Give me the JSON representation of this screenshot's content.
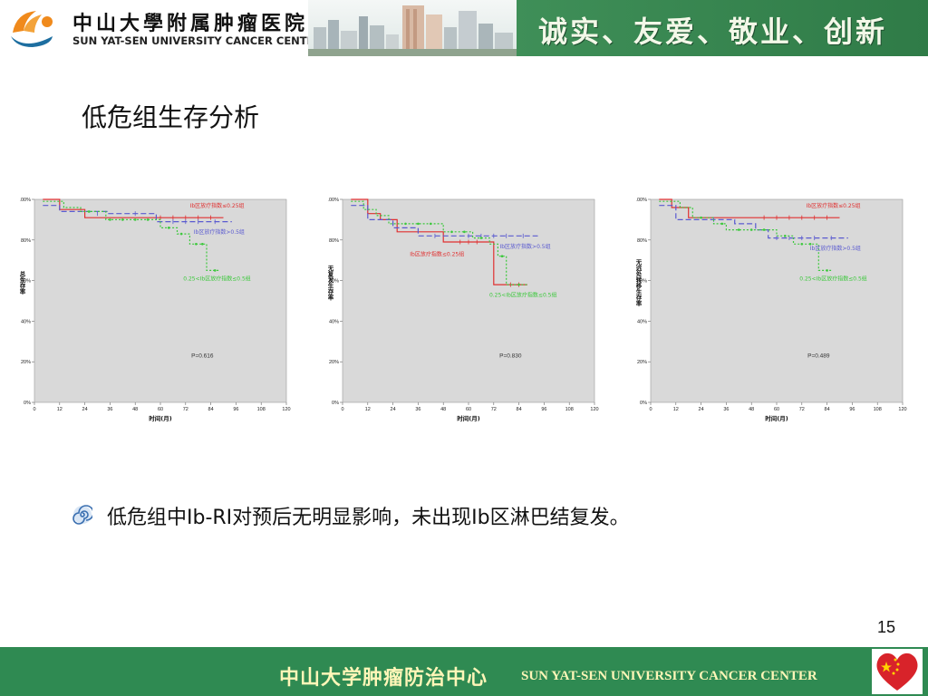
{
  "header": {
    "logo_cn": "中山大學附属肿瘤医院",
    "logo_en": "SUN YAT-SEN UNIVERSITY CANCER CENTER",
    "motto": "诚实、友爱、敬业、创新"
  },
  "slide": {
    "title": "低危组生存分析",
    "bullet_text": "低危组中Ⅰb-RI对预后无明显影响，未出现Ⅰb区淋巴结复发。",
    "page_number": "15"
  },
  "footer": {
    "cn": "中山大学肿瘤防治中心",
    "en": "SUN YAT-SEN UNIVERSITY CANCER CENTER"
  },
  "colors": {
    "header_green": "#3f8f58",
    "footer_green": "#2f8a52",
    "footer_text": "#fff6b8",
    "plot_bg": "#d9d9d9",
    "series_red": "#e03030",
    "series_blue": "#5a5ad0",
    "series_green": "#3cc83c"
  },
  "chart_data": [
    {
      "type": "line",
      "ylabel": "总生存率",
      "xlabel": "时间(月)",
      "xlim": [
        0,
        120
      ],
      "ylim": [
        0,
        100
      ],
      "x_ticks": [
        "0",
        "12",
        "24",
        "36",
        "48",
        "60",
        "72",
        "84",
        "96",
        "108",
        "120"
      ],
      "y_ticks": [
        "0%",
        "20%",
        "40%",
        "60%",
        "80%",
        "100%"
      ],
      "p_value": "P=0.616",
      "series": [
        {
          "name": "Ⅰb区放疗指数≤0.25组",
          "color": "#e03030",
          "dash": "none",
          "points": [
            [
              4,
              100
            ],
            [
              12,
              100
            ],
            [
              12,
              95
            ],
            [
              24,
              95
            ],
            [
              24,
              91
            ],
            [
              90,
              91
            ]
          ],
          "censors": [
            [
              60,
              91
            ],
            [
              66,
              91
            ],
            [
              72,
              91
            ],
            [
              78,
              91
            ],
            [
              84,
              91
            ]
          ]
        },
        {
          "name": "Ⅰb区放疗指数>0.5组",
          "color": "#5a5ad0",
          "dash": "6,3",
          "points": [
            [
              4,
              97
            ],
            [
              12,
              97
            ],
            [
              12,
              94
            ],
            [
              35,
              94
            ],
            [
              35,
              93
            ],
            [
              58,
              93
            ],
            [
              58,
              89
            ],
            [
              94,
              89
            ]
          ],
          "censors": [
            [
              30,
              93
            ],
            [
              48,
              93
            ],
            [
              66,
              89
            ],
            [
              72,
              89
            ],
            [
              78,
              89
            ],
            [
              86,
              89
            ]
          ]
        },
        {
          "name": "0.25<Ⅰb区放疗指数≤0.5组",
          "color": "#3cc83c",
          "dash": "2,2",
          "points": [
            [
              4,
              99
            ],
            [
              14,
              99
            ],
            [
              14,
              96
            ],
            [
              22,
              96
            ],
            [
              22,
              94
            ],
            [
              34,
              94
            ],
            [
              34,
              90
            ],
            [
              60,
              90
            ],
            [
              60,
              86
            ],
            [
              68,
              86
            ],
            [
              68,
              83
            ],
            [
              74,
              83
            ],
            [
              74,
              78
            ],
            [
              82,
              78
            ],
            [
              82,
              65
            ],
            [
              88,
              65
            ]
          ],
          "censors": [
            [
              26,
              94
            ],
            [
              36,
              90
            ],
            [
              42,
              90
            ],
            [
              48,
              90
            ],
            [
              54,
              90
            ],
            [
              64,
              86
            ],
            [
              70,
              83
            ],
            [
              77,
              78
            ],
            [
              80,
              78
            ],
            [
              86,
              65
            ]
          ]
        }
      ],
      "labels": [
        {
          "text": "Ⅰb区放疗指数≤0.25组",
          "color": "#e03030",
          "x": 87,
          "y": 96
        },
        {
          "text": "Ⅰb区放疗指数>0.5组",
          "color": "#5a5ad0",
          "x": 88,
          "y": 83
        },
        {
          "text": "0.25<Ⅰb区放疗指数≤0.5组",
          "color": "#3cc83c",
          "x": 87,
          "y": 60
        }
      ]
    },
    {
      "type": "line",
      "ylabel": "无复发生存率",
      "xlabel": "时间(月)",
      "xlim": [
        0,
        120
      ],
      "ylim": [
        0,
        100
      ],
      "x_ticks": [
        "0",
        "12",
        "24",
        "36",
        "48",
        "60",
        "72",
        "84",
        "96",
        "108",
        "120"
      ],
      "y_ticks": [
        "0%",
        "20%",
        "40%",
        "60%",
        "80%",
        "100%"
      ],
      "p_value": "P=0.830",
      "series": [
        {
          "name": "Ⅰb区放疗指数≤0.25组",
          "color": "#e03030",
          "dash": "none",
          "points": [
            [
              4,
              100
            ],
            [
              12,
              100
            ],
            [
              12,
              93
            ],
            [
              18,
              93
            ],
            [
              18,
              90
            ],
            [
              26,
              90
            ],
            [
              26,
              84
            ],
            [
              48,
              84
            ],
            [
              48,
              79
            ],
            [
              72,
              79
            ],
            [
              72,
              58
            ],
            [
              88,
              58
            ]
          ],
          "censors": [
            [
              56,
              79
            ],
            [
              60,
              79
            ],
            [
              64,
              79
            ],
            [
              80,
              58
            ],
            [
              84,
              58
            ]
          ]
        },
        {
          "name": "Ⅰb区放疗指数>0.5组",
          "color": "#5a5ad0",
          "dash": "6,3",
          "points": [
            [
              4,
              97
            ],
            [
              12,
              97
            ],
            [
              12,
              90
            ],
            [
              24,
              90
            ],
            [
              24,
              86
            ],
            [
              36,
              86
            ],
            [
              36,
              82
            ],
            [
              56,
              82
            ],
            [
              56,
              82
            ],
            [
              93,
              82
            ]
          ],
          "censors": [
            [
              44,
              82
            ],
            [
              60,
              82
            ],
            [
              66,
              82
            ],
            [
              72,
              82
            ],
            [
              78,
              82
            ],
            [
              86,
              82
            ]
          ]
        },
        {
          "name": "0.25<Ⅰb区放疗指数≤0.5组",
          "color": "#3cc83c",
          "dash": "2,2",
          "points": [
            [
              4,
              99
            ],
            [
              10,
              99
            ],
            [
              10,
              95
            ],
            [
              16,
              95
            ],
            [
              16,
              92
            ],
            [
              22,
              92
            ],
            [
              22,
              88
            ],
            [
              48,
              88
            ],
            [
              48,
              84
            ],
            [
              62,
              84
            ],
            [
              62,
              81
            ],
            [
              70,
              81
            ],
            [
              70,
              78
            ],
            [
              74,
              78
            ],
            [
              74,
              72
            ],
            [
              78,
              72
            ],
            [
              78,
              58
            ],
            [
              88,
              58
            ]
          ],
          "censors": [
            [
              30,
              88
            ],
            [
              36,
              88
            ],
            [
              42,
              88
            ],
            [
              52,
              84
            ],
            [
              58,
              84
            ],
            [
              66,
              81
            ],
            [
              76,
              72
            ],
            [
              84,
              58
            ]
          ]
        }
      ],
      "labels": [
        {
          "text": "Ⅰb区放疗指数>0.5组",
          "color": "#5a5ad0",
          "x": 87,
          "y": 76
        },
        {
          "text": "Ⅰb区放疗指数≤0.25组",
          "color": "#e03030",
          "x": 45,
          "y": 72
        },
        {
          "text": "0.25<Ⅰb区放疗指数≤0.5组",
          "color": "#3cc83c",
          "x": 86,
          "y": 52
        }
      ]
    },
    {
      "type": "line",
      "ylabel": "无远处转移生存率",
      "xlabel": "时间(月)",
      "xlim": [
        0,
        120
      ],
      "ylim": [
        0,
        100
      ],
      "x_ticks": [
        "0",
        "12",
        "24",
        "36",
        "48",
        "60",
        "72",
        "84",
        "96",
        "108",
        "120"
      ],
      "y_ticks": [
        "0%",
        "20%",
        "40%",
        "60%",
        "80%",
        "100%"
      ],
      "p_value": "P=0.489",
      "series": [
        {
          "name": "Ⅰb区放疗指数≤0.25组",
          "color": "#e03030",
          "dash": "none",
          "points": [
            [
              4,
              100
            ],
            [
              10,
              100
            ],
            [
              10,
              96
            ],
            [
              18,
              96
            ],
            [
              18,
              91
            ],
            [
              90,
              91
            ]
          ],
          "censors": [
            [
              54,
              91
            ],
            [
              60,
              91
            ],
            [
              66,
              91
            ],
            [
              72,
              91
            ],
            [
              78,
              91
            ],
            [
              84,
              91
            ]
          ]
        },
        {
          "name": "Ⅰb区放疗指数>0.5组",
          "color": "#5a5ad0",
          "dash": "6,3",
          "points": [
            [
              4,
              97
            ],
            [
              12,
              97
            ],
            [
              12,
              90
            ],
            [
              40,
              90
            ],
            [
              40,
              88
            ],
            [
              50,
              88
            ],
            [
              50,
              85
            ],
            [
              56,
              85
            ],
            [
              56,
              81
            ],
            [
              94,
              81
            ]
          ],
          "censors": [
            [
              30,
              90
            ],
            [
              60,
              81
            ],
            [
              66,
              81
            ],
            [
              72,
              81
            ],
            [
              78,
              81
            ],
            [
              86,
              81
            ]
          ]
        },
        {
          "name": "0.25<Ⅰb区放疗指数≤0.5组",
          "color": "#3cc83c",
          "dash": "2,2",
          "points": [
            [
              4,
              99
            ],
            [
              14,
              99
            ],
            [
              14,
              96
            ],
            [
              20,
              96
            ],
            [
              20,
              91
            ],
            [
              30,
              91
            ],
            [
              30,
              88
            ],
            [
              36,
              88
            ],
            [
              36,
              85
            ],
            [
              60,
              85
            ],
            [
              60,
              82
            ],
            [
              68,
              82
            ],
            [
              68,
              78
            ],
            [
              80,
              78
            ],
            [
              80,
              65
            ],
            [
              86,
              65
            ]
          ],
          "censors": [
            [
              24,
              91
            ],
            [
              34,
              88
            ],
            [
              42,
              85
            ],
            [
              48,
              85
            ],
            [
              54,
              85
            ],
            [
              64,
              82
            ],
            [
              72,
              78
            ],
            [
              76,
              78
            ],
            [
              84,
              65
            ]
          ]
        }
      ],
      "labels": [
        {
          "text": "Ⅰb区放疗指数≤0.25组",
          "color": "#e03030",
          "x": 87,
          "y": 96
        },
        {
          "text": "Ⅰb区放疗指数>0.5组",
          "color": "#5a5ad0",
          "x": 88,
          "y": 75
        },
        {
          "text": "0.25<Ⅰb区放疗指数≤0.5组",
          "color": "#3cc83c",
          "x": 87,
          "y": 60
        }
      ]
    }
  ]
}
